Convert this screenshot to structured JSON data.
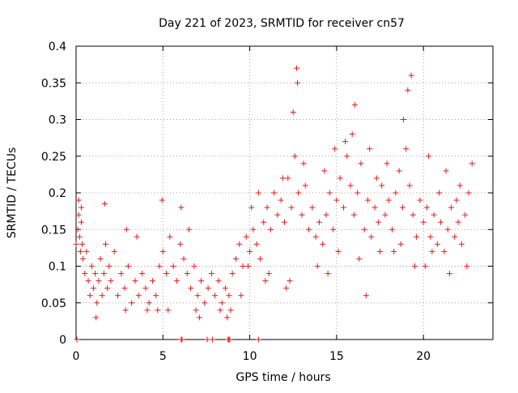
{
  "chart_data": {
    "type": "scatter",
    "title": "Day 221 of 2023, SRMTID for receiver cn57",
    "xlabel": "GPS time / hours",
    "ylabel": "SRMTID / TECUs",
    "xlim": [
      0,
      24
    ],
    "ylim": [
      0,
      0.4
    ],
    "xticks": [
      0,
      5,
      10,
      15,
      20
    ],
    "yticks": [
      0,
      0.05,
      0.1,
      0.15,
      0.2,
      0.25,
      0.3,
      0.35,
      0.4
    ],
    "xtick_labels": [
      "0",
      "5",
      "10",
      "15",
      "20"
    ],
    "ytick_labels": [
      "0",
      "0.05",
      "0.1",
      "0.15",
      "0.2",
      "0.25",
      "0.3",
      "0.35",
      "0.4"
    ],
    "grid": true,
    "marker": "+",
    "marker_color": "#e41a1c",
    "series": [
      {
        "name": "SRMTID",
        "points": [
          [
            0.0,
            0.13
          ],
          [
            0.1,
            0.15
          ],
          [
            0.15,
            0.17
          ],
          [
            0.2,
            0.14
          ],
          [
            0.25,
            0.12
          ],
          [
            0.3,
            0.16
          ],
          [
            0.35,
            0.13
          ],
          [
            0.4,
            0.11
          ],
          [
            0.5,
            0.09
          ],
          [
            0.6,
            0.12
          ],
          [
            0.7,
            0.08
          ],
          [
            0.8,
            0.06
          ],
          [
            0.9,
            0.1
          ],
          [
            1.0,
            0.07
          ],
          [
            1.1,
            0.09
          ],
          [
            1.2,
            0.05
          ],
          [
            1.3,
            0.08
          ],
          [
            1.4,
            0.11
          ],
          [
            1.5,
            0.06
          ],
          [
            1.6,
            0.09
          ],
          [
            1.7,
            0.13
          ],
          [
            1.8,
            0.07
          ],
          [
            1.9,
            0.1
          ],
          [
            2.0,
            0.08
          ],
          [
            2.2,
            0.12
          ],
          [
            2.4,
            0.06
          ],
          [
            2.6,
            0.09
          ],
          [
            2.8,
            0.07
          ],
          [
            3.0,
            0.1
          ],
          [
            3.2,
            0.05
          ],
          [
            3.4,
            0.08
          ],
          [
            3.6,
            0.06
          ],
          [
            3.8,
            0.09
          ],
          [
            4.0,
            0.07
          ],
          [
            4.2,
            0.05
          ],
          [
            4.4,
            0.08
          ],
          [
            4.6,
            0.06
          ],
          [
            4.8,
            0.1
          ],
          [
            5.0,
            0.12
          ],
          [
            5.2,
            0.09
          ],
          [
            5.4,
            0.14
          ],
          [
            5.6,
            0.1
          ],
          [
            5.8,
            0.08
          ],
          [
            6.0,
            0.13
          ],
          [
            6.2,
            0.11
          ],
          [
            6.4,
            0.09
          ],
          [
            6.6,
            0.07
          ],
          [
            6.8,
            0.1
          ],
          [
            7.0,
            0.06
          ],
          [
            7.2,
            0.08
          ],
          [
            7.4,
            0.05
          ],
          [
            7.6,
            0.07
          ],
          [
            7.8,
            0.09
          ],
          [
            8.0,
            0.06
          ],
          [
            8.2,
            0.08
          ],
          [
            8.4,
            0.05
          ],
          [
            8.6,
            0.07
          ],
          [
            8.8,
            0.06
          ],
          [
            9.0,
            0.09
          ],
          [
            9.2,
            0.11
          ],
          [
            9.4,
            0.13
          ],
          [
            9.6,
            0.1
          ],
          [
            9.8,
            0.14
          ],
          [
            10.0,
            0.12
          ],
          [
            10.2,
            0.15
          ],
          [
            10.4,
            0.13
          ],
          [
            10.6,
            0.11
          ],
          [
            10.8,
            0.16
          ],
          [
            11.0,
            0.18
          ],
          [
            11.2,
            0.15
          ],
          [
            11.4,
            0.2
          ],
          [
            11.6,
            0.17
          ],
          [
            11.8,
            0.19
          ],
          [
            12.0,
            0.16
          ],
          [
            12.2,
            0.22
          ],
          [
            12.4,
            0.18
          ],
          [
            12.6,
            0.25
          ],
          [
            12.8,
            0.2
          ],
          [
            13.0,
            0.17
          ],
          [
            13.2,
            0.21
          ],
          [
            13.4,
            0.15
          ],
          [
            13.6,
            0.18
          ],
          [
            13.8,
            0.14
          ],
          [
            14.0,
            0.16
          ],
          [
            14.2,
            0.13
          ],
          [
            14.4,
            0.17
          ],
          [
            14.6,
            0.2
          ],
          [
            14.8,
            0.15
          ],
          [
            15.0,
            0.19
          ],
          [
            15.2,
            0.22
          ],
          [
            15.4,
            0.18
          ],
          [
            15.6,
            0.25
          ],
          [
            15.8,
            0.21
          ],
          [
            16.0,
            0.17
          ],
          [
            16.2,
            0.2
          ],
          [
            16.4,
            0.24
          ],
          [
            16.6,
            0.15
          ],
          [
            16.8,
            0.19
          ],
          [
            17.0,
            0.14
          ],
          [
            17.2,
            0.18
          ],
          [
            17.4,
            0.16
          ],
          [
            17.6,
            0.21
          ],
          [
            17.8,
            0.17
          ],
          [
            18.0,
            0.19
          ],
          [
            18.2,
            0.15
          ],
          [
            18.4,
            0.2
          ],
          [
            18.6,
            0.23
          ],
          [
            18.8,
            0.18
          ],
          [
            19.0,
            0.26
          ],
          [
            19.2,
            0.21
          ],
          [
            19.4,
            0.17
          ],
          [
            19.6,
            0.14
          ],
          [
            19.8,
            0.19
          ],
          [
            20.0,
            0.16
          ],
          [
            20.2,
            0.18
          ],
          [
            20.4,
            0.14
          ],
          [
            20.6,
            0.17
          ],
          [
            20.8,
            0.13
          ],
          [
            21.0,
            0.16
          ],
          [
            21.2,
            0.12
          ],
          [
            21.4,
            0.15
          ],
          [
            21.6,
            0.18
          ],
          [
            21.8,
            0.14
          ],
          [
            22.0,
            0.16
          ],
          [
            22.2,
            0.13
          ],
          [
            22.4,
            0.17
          ],
          [
            22.6,
            0.2
          ],
          [
            22.8,
            0.24
          ],
          [
            12.7,
            0.37
          ],
          [
            12.75,
            0.35
          ],
          [
            19.3,
            0.36
          ],
          [
            19.1,
            0.34
          ],
          [
            16.05,
            0.32
          ],
          [
            18.85,
            0.3
          ],
          [
            12.5,
            0.31
          ],
          [
            15.9,
            0.28
          ],
          [
            0.3,
            0.18
          ],
          [
            0.15,
            0.19
          ],
          [
            1.65,
            0.185
          ],
          [
            4.95,
            0.19
          ],
          [
            6.05,
            0.18
          ],
          [
            6.5,
            0.15
          ],
          [
            2.9,
            0.15
          ],
          [
            3.5,
            0.14
          ],
          [
            1.15,
            0.03
          ],
          [
            2.85,
            0.04
          ],
          [
            4.7,
            0.04
          ],
          [
            6.9,
            0.04
          ],
          [
            8.3,
            0.04
          ],
          [
            5.3,
            0.04
          ],
          [
            4.1,
            0.04
          ],
          [
            7.1,
            0.03
          ],
          [
            10.1,
            0.18
          ],
          [
            10.5,
            0.2
          ],
          [
            11.9,
            0.22
          ],
          [
            13.1,
            0.24
          ],
          [
            14.3,
            0.23
          ],
          [
            14.9,
            0.26
          ],
          [
            15.5,
            0.27
          ],
          [
            16.9,
            0.26
          ],
          [
            17.9,
            0.24
          ],
          [
            20.3,
            0.25
          ],
          [
            21.3,
            0.23
          ],
          [
            22.1,
            0.21
          ],
          [
            20.9,
            0.2
          ],
          [
            21.9,
            0.19
          ],
          [
            17.5,
            0.12
          ],
          [
            16.3,
            0.11
          ],
          [
            15.1,
            0.12
          ],
          [
            13.9,
            0.1
          ],
          [
            14.5,
            0.09
          ],
          [
            12.3,
            0.08
          ],
          [
            12.1,
            0.07
          ],
          [
            16.7,
            0.06
          ],
          [
            19.5,
            0.1
          ],
          [
            20.5,
            0.12
          ],
          [
            21.5,
            0.09
          ],
          [
            22.5,
            0.1
          ],
          [
            20.1,
            0.1
          ],
          [
            18.3,
            0.12
          ],
          [
            18.7,
            0.13
          ],
          [
            17.3,
            0.22
          ],
          [
            11.1,
            0.09
          ],
          [
            10.9,
            0.08
          ],
          [
            9.5,
            0.06
          ],
          [
            9.9,
            0.1
          ],
          [
            8.9,
            0.04
          ],
          [
            8.7,
            0.03
          ],
          [
            0.05,
            0.0
          ],
          [
            6.05,
            0.0
          ],
          [
            7.55,
            0.0
          ],
          [
            7.85,
            0.0
          ],
          [
            8.75,
            0.0
          ],
          [
            8.85,
            0.0
          ],
          [
            10.5,
            0.0
          ],
          [
            6.1,
            0.0
          ],
          [
            8.8,
            0.0
          ]
        ]
      }
    ]
  }
}
